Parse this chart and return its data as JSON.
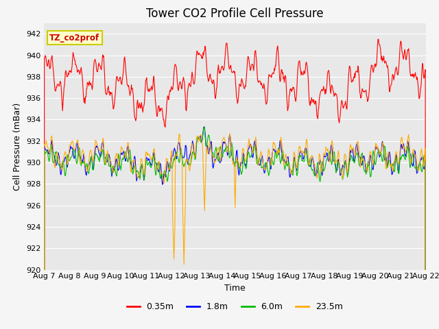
{
  "title": "Tower CO2 Profile Cell Pressure",
  "xlabel": "Time",
  "ylabel": "Cell Pressure (mBar)",
  "ylim": [
    920,
    943
  ],
  "yticks": [
    920,
    922,
    924,
    926,
    928,
    930,
    932,
    934,
    936,
    938,
    940,
    942
  ],
  "date_labels": [
    "Aug 7",
    "Aug 8",
    "Aug 9",
    "Aug 10",
    "Aug 11",
    "Aug 12",
    "Aug 13",
    "Aug 14",
    "Aug 15",
    "Aug 16",
    "Aug 17",
    "Aug 18",
    "Aug 19",
    "Aug 20",
    "Aug 21",
    "Aug 22"
  ],
  "line_colors": [
    "#ff0000",
    "#0000ff",
    "#00bb00",
    "#ffaa00"
  ],
  "line_labels": [
    "0.35m",
    "1.8m",
    "6.0m",
    "23.5m"
  ],
  "legend_box_color": "#ffffcc",
  "legend_box_edge": "#cccc00",
  "annotation_text": "TZ_co2prof",
  "annotation_color": "#cc0000",
  "plot_bg_color": "#e8e8e8",
  "grid_color": "#ffffff",
  "title_fontsize": 12,
  "axis_label_fontsize": 9,
  "tick_label_fontsize": 8
}
